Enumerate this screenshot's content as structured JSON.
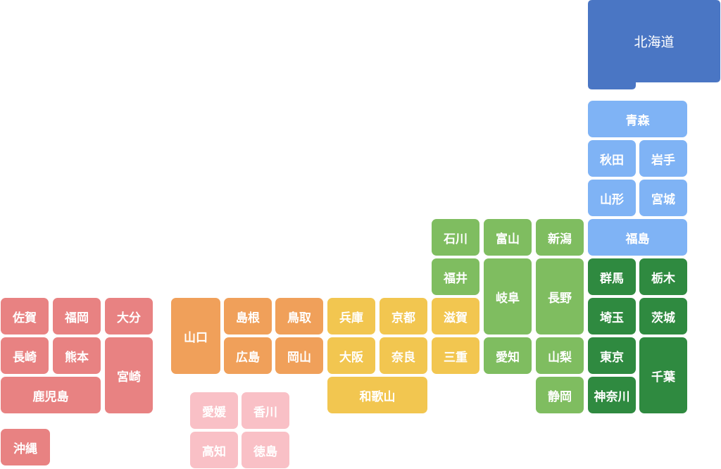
{
  "prefectures": [
    "北海道",
    "青森",
    "秋田",
    "岩手",
    "山形",
    "宮城",
    "福島",
    "群馬",
    "栃木",
    "埼玉",
    "茨城",
    "東京",
    "千葉",
    "神奈川",
    "石川",
    "富山",
    "新潟",
    "福井",
    "岐阜",
    "長野",
    "愛知",
    "山梨",
    "静岡",
    "滋賀",
    "三重",
    "兵庫",
    "京都",
    "大阪",
    "奈良",
    "和歌山",
    "山口",
    "島根",
    "鳥取",
    "広島",
    "岡山",
    "愛媛",
    "香川",
    "高知",
    "徳島",
    "佐賀",
    "福岡",
    "大分",
    "長崎",
    "熊本",
    "宮崎",
    "鹿児島",
    "沖縄"
  ]
}
